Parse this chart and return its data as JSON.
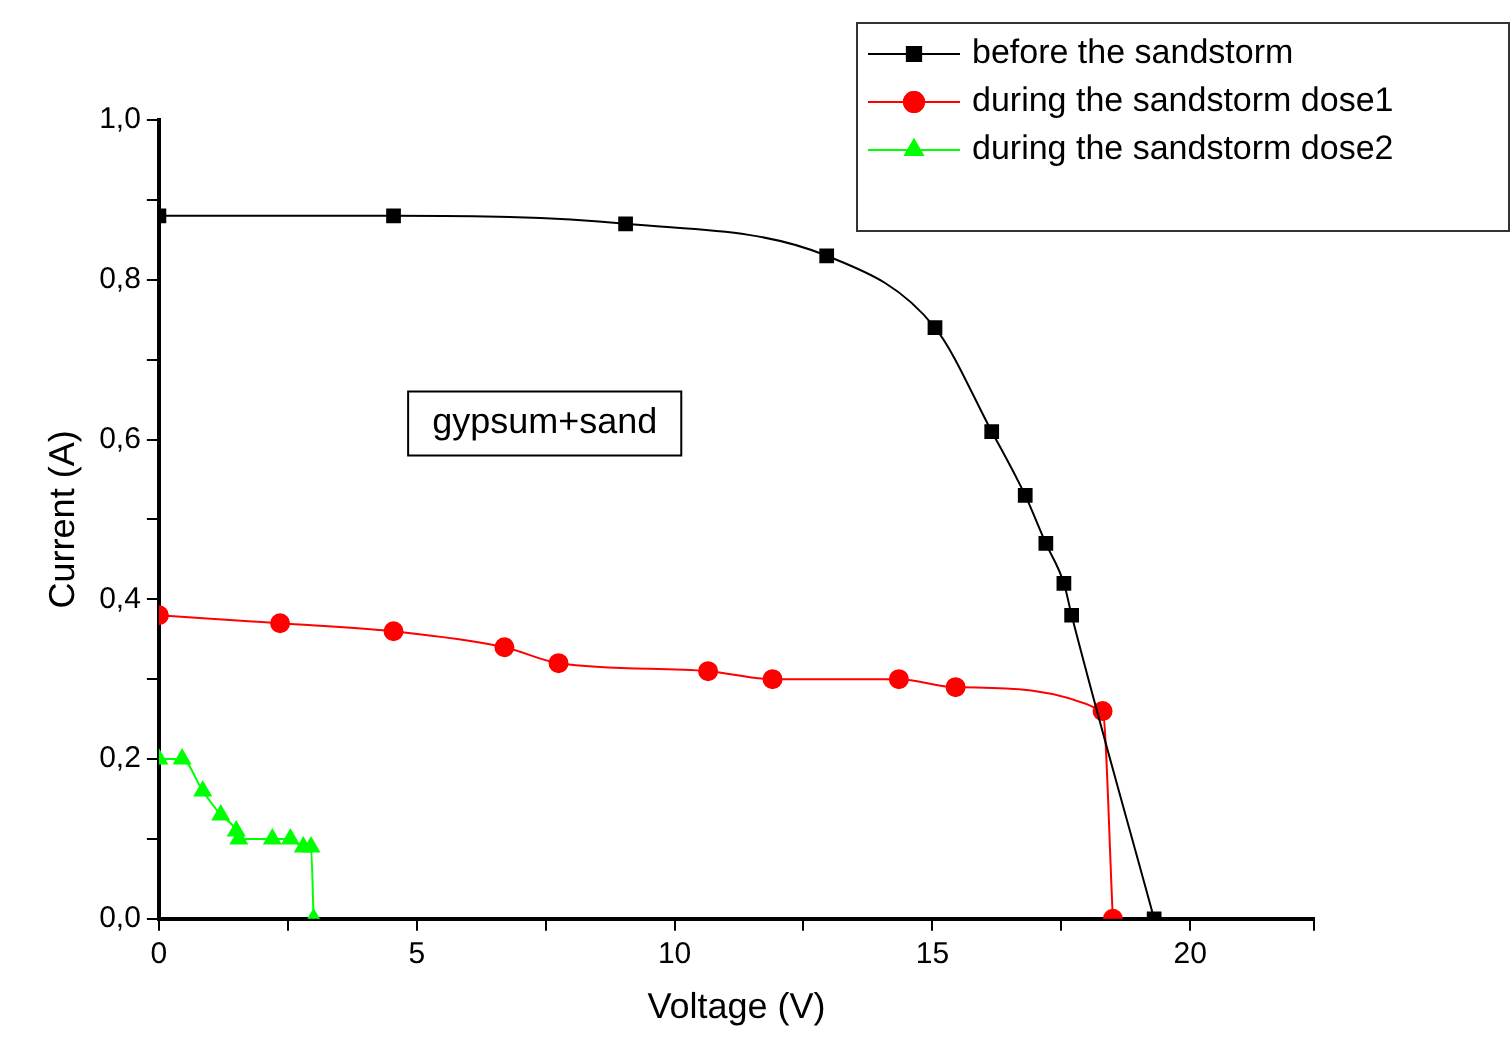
{
  "chart_data": {
    "type": "line",
    "xlabel": "Voltage (V)",
    "ylabel": "Current (A)",
    "xlim": [
      0,
      22.4
    ],
    "xticks": [
      0,
      {
        "value": 2.5,
        "label": null
      },
      5,
      {
        "value": 7.5,
        "label": null
      },
      10,
      {
        "value": 12.5,
        "label": null
      },
      15,
      {
        "value": 17.5,
        "label": null
      },
      20,
      {
        "value": 22.4,
        "label": null
      }
    ],
    "ylim": [
      0,
      1
    ],
    "yticks": [
      {
        "value": 0,
        "label": "0,0"
      },
      {
        "value": 0.1,
        "label": null
      },
      {
        "value": 0.2,
        "label": "0,2"
      },
      {
        "value": 0.3,
        "label": null
      },
      {
        "value": 0.4,
        "label": "0,4"
      },
      {
        "value": 0.5,
        "label": null
      },
      {
        "value": 0.6,
        "label": "0,6"
      },
      {
        "value": 0.7,
        "label": null
      },
      {
        "value": 0.8,
        "label": "0,8"
      },
      {
        "value": 0.9,
        "label": null
      },
      {
        "value": 1,
        "label": "1,0"
      }
    ],
    "grid": false,
    "legend": "top right",
    "line_style": "solid",
    "annotations": [
      "gypsum+sand"
    ],
    "series": [
      {
        "name": "before the sandstorm",
        "color": "#000000",
        "marker": "square",
        "x": [
          0,
          4.55,
          9.05,
          12.95,
          15.05,
          16.15,
          16.8,
          17.2,
          17.55,
          17.7,
          19.3
        ],
        "values": [
          0.88,
          0.88,
          0.87,
          0.83,
          0.74,
          0.61,
          0.53,
          0.47,
          0.42,
          0.38,
          0
        ]
      },
      {
        "name": "during the sandstorm dose1",
        "color": "#ff0000",
        "marker": "circle",
        "x": [
          0,
          2.35,
          4.55,
          6.7,
          7.75,
          10.65,
          11.9,
          14.35,
          15.45,
          18.3,
          18.5
        ],
        "values": [
          0.38,
          0.37,
          0.36,
          0.34,
          0.32,
          0.31,
          0.3,
          0.3,
          0.29,
          0.26,
          0
        ]
      },
      {
        "name": "during the sandstorm dose2",
        "color": "#00ff00",
        "marker": "triangle",
        "x": [
          0,
          0.45,
          0.85,
          1.2,
          1.5,
          1.55,
          2.2,
          2.55,
          2.8,
          2.95,
          3.0
        ],
        "values": [
          0.2,
          0.2,
          0.16,
          0.13,
          0.11,
          0.1,
          0.1,
          0.1,
          0.09,
          0.09,
          0
        ]
      }
    ]
  }
}
